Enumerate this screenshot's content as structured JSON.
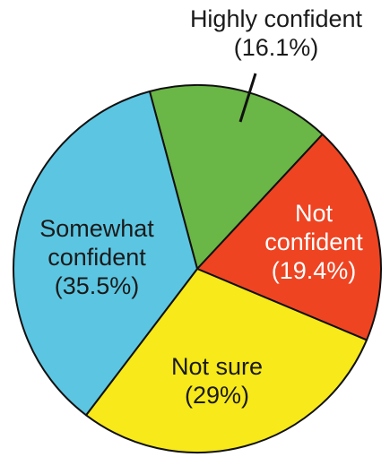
{
  "chart_data": {
    "type": "pie",
    "title": "",
    "start_angle_deg": -105,
    "direction": "clockwise",
    "slices": [
      {
        "label_lines": [
          "Highly confident",
          "(16.1%)"
        ],
        "value": 16.1,
        "color": "#6ab646"
      },
      {
        "label_lines": [
          "Not",
          "confident",
          "(19.4%)"
        ],
        "value": 19.4,
        "color": "#ee4422"
      },
      {
        "label_lines": [
          "Not sure",
          "(29%)"
        ],
        "value": 29,
        "color": "#f7e91a"
      },
      {
        "label_lines": [
          "Somewhat",
          "confident",
          "(35.5%)"
        ],
        "value": 35.5,
        "color": "#5cc6e2"
      }
    ]
  }
}
